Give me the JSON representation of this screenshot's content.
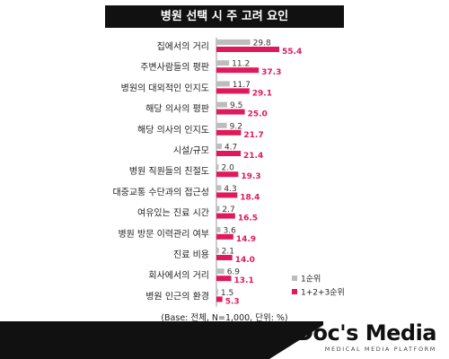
{
  "title": "병원 선택 시 주 고려 요인",
  "note": "(Base: 전체, N=1,000, 단위: %)",
  "brand": {
    "name": "Doc's Media",
    "tagline": "MEDICAL MEDIA PLATFORM"
  },
  "colors": {
    "series1": "#bdbdbd",
    "series2": "#e0195a",
    "title_bg": "#111111"
  },
  "chart_data": {
    "type": "bar",
    "orientation": "horizontal",
    "title": "병원 선택 시 주 고려 요인",
    "xlabel": "",
    "ylabel": "",
    "xlim": [
      0,
      60
    ],
    "grid": false,
    "legend": "bottom-right",
    "categories": [
      "집에서의 거리",
      "주변사람들의 평판",
      "병원의 대외적인 인지도",
      "해당 의사의 평판",
      "해당 의사의 인지도",
      "시설/규모",
      "병원 직원들의 친절도",
      "대중교통 수단과의 접근성",
      "여유있는 진료 시간",
      "병원 방문 이력관리 여부",
      "진료 비용",
      "회사에서의 거리",
      "병원 인근의 환경"
    ],
    "series": [
      {
        "name": "1순위",
        "values": [
          29.8,
          11.2,
          11.7,
          9.5,
          9.2,
          4.7,
          2.0,
          4.3,
          2.7,
          3.6,
          2.1,
          6.9,
          1.5
        ]
      },
      {
        "name": "1+2+3순위",
        "values": [
          55.4,
          37.3,
          29.1,
          25.0,
          21.7,
          21.4,
          19.3,
          18.4,
          16.5,
          14.9,
          14.0,
          13.1,
          5.3
        ]
      }
    ]
  }
}
